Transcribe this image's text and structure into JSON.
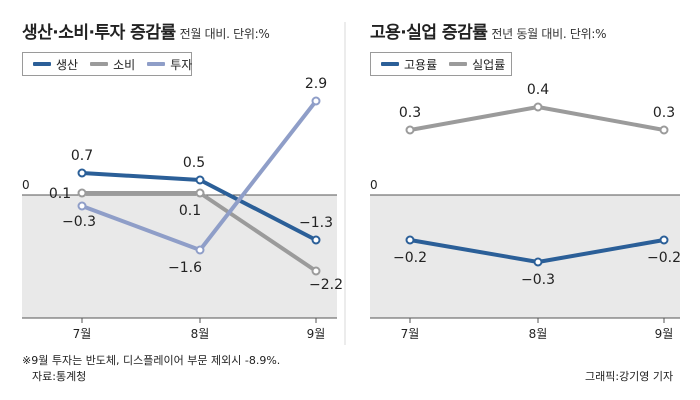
{
  "colors": {
    "production": "#2b5f98",
    "consumption": "#9b9b9b",
    "investment": "#8f9ec8",
    "employment": "#2b5f98",
    "unemployment": "#9b9b9b",
    "negative_band": "#e9e9e9",
    "divider": "#d9d9d9"
  },
  "left_panel": {
    "title": "생산·소비·투자 증감률",
    "subtitle": "전월 대비. 단위:%",
    "legend": [
      "생산",
      "소비",
      "투자"
    ]
  },
  "right_panel": {
    "title": "고용·실업 증감률",
    "subtitle": "전년 동월 대비. 단위:%",
    "legend": [
      "고용률",
      "실업률"
    ]
  },
  "footnote": {
    "note": "※9월 투자는 반도체, 디스플레이어 부문 제외시 -8.9%.",
    "source": "자료:통계청",
    "credit": "그래픽:강기영 기자"
  },
  "chart_data": [
    {
      "type": "line",
      "title": "생산·소비·투자 증감률",
      "subtitle": "전월 대비. 단위:%",
      "categories": [
        "7월",
        "8월",
        "9월"
      ],
      "zero_label": "0",
      "series": [
        {
          "name": "생산",
          "values": [
            0.7,
            0.5,
            -1.3
          ],
          "labels": [
            "0.7",
            "0.5",
            "−1.3"
          ]
        },
        {
          "name": "소비",
          "values": [
            0.1,
            0.1,
            -2.2
          ],
          "labels": [
            "0.1",
            "0.1",
            "−2.2"
          ]
        },
        {
          "name": "투자",
          "values": [
            -0.3,
            -1.6,
            2.9
          ],
          "labels": [
            "−0.3",
            "−1.6",
            "2.9"
          ]
        }
      ],
      "negative_region_shaded": true
    },
    {
      "type": "line",
      "title": "고용·실업 증감률",
      "subtitle": "전년 동월 대비. 단위:%",
      "categories": [
        "7월",
        "8월",
        "9월"
      ],
      "zero_label": "0",
      "series": [
        {
          "name": "고용률",
          "values": [
            -0.2,
            -0.3,
            -0.2
          ],
          "labels": [
            "−0.2",
            "−0.3",
            "−0.2"
          ]
        },
        {
          "name": "실업률",
          "values": [
            0.3,
            0.4,
            0.3
          ],
          "labels": [
            "0.3",
            "0.4",
            "0.3"
          ]
        }
      ],
      "negative_region_shaded": true
    }
  ]
}
